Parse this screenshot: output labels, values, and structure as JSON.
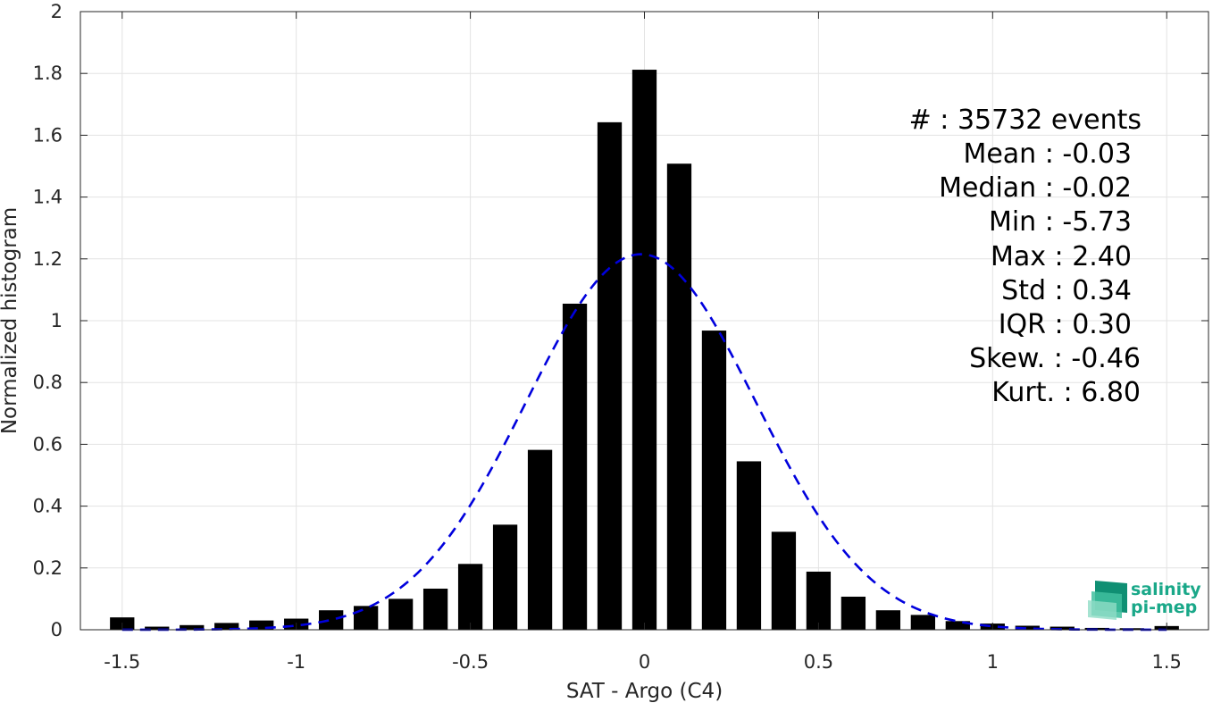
{
  "chart_data": {
    "type": "bar",
    "xlabel": "SAT - Argo (C4)",
    "ylabel": "Normalized histogram",
    "xlim": [
      -1.62,
      1.62
    ],
    "ylim": [
      0,
      2
    ],
    "xticks": [
      -1.5,
      -1,
      -0.5,
      0,
      0.5,
      1,
      1.5
    ],
    "xtick_labels": [
      "-1.5",
      "-1",
      "-0.5",
      "0",
      "0.5",
      "1",
      "1.5"
    ],
    "yticks": [
      0,
      0.2,
      0.4,
      0.6,
      0.8,
      1,
      1.2,
      1.4,
      1.6,
      1.8,
      2
    ],
    "ytick_labels": [
      "0",
      "0.2",
      "0.4",
      "0.6",
      "0.8",
      "1",
      "1.2",
      "1.4",
      "1.6",
      "1.8",
      "2"
    ],
    "grid": true,
    "bar_width": 0.07,
    "x": [
      -1.5,
      -1.4,
      -1.3,
      -1.2,
      -1.1,
      -1.0,
      -0.9,
      -0.8,
      -0.7,
      -0.6,
      -0.5,
      -0.4,
      -0.3,
      -0.2,
      -0.1,
      0.0,
      0.1,
      0.2,
      0.3,
      0.4,
      0.5,
      0.6,
      0.7,
      0.8,
      0.9,
      1.0,
      1.1,
      1.2,
      1.3,
      1.4,
      1.5
    ],
    "values": [
      0.04,
      0.01,
      0.015,
      0.022,
      0.03,
      0.036,
      0.063,
      0.077,
      0.1,
      0.133,
      0.213,
      0.34,
      0.582,
      1.055,
      1.642,
      1.812,
      1.508,
      0.968,
      0.545,
      0.317,
      0.188,
      0.107,
      0.063,
      0.048,
      0.028,
      0.02,
      0.013,
      0.01,
      0.006,
      0.005,
      0.012
    ],
    "bar_color": "#000000",
    "fit_curve": {
      "style": "dashed",
      "color": "#0000dd",
      "mean": -0.01,
      "std": 0.33,
      "peak": 1.215
    },
    "stats_lines": [
      "#  : 35732 events",
      "Mean : -0.03",
      "Median : -0.02",
      "Min : -5.73",
      "Max : 2.40",
      "Std : 0.34",
      "IQR : 0.30",
      "Skew. : -0.46",
      "Kurt. : 6.80"
    ]
  },
  "logo": {
    "line1": "salinity",
    "line2": "pi-mep",
    "color": "#1aa889"
  }
}
